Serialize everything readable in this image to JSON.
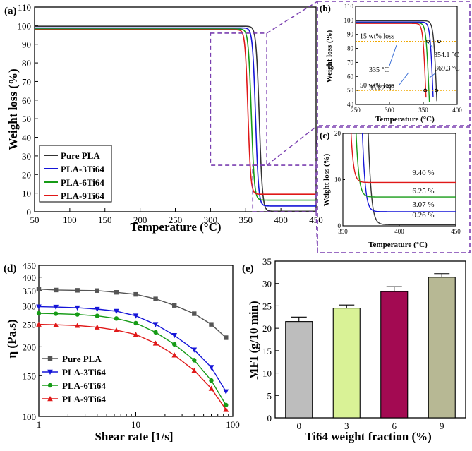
{
  "chart_data": [
    {
      "id": "a",
      "panel_label": "(a)",
      "type": "line",
      "title": "",
      "xlabel": "Temperature (°C)",
      "ylabel": "Weight loss (%)",
      "xlim": [
        50,
        450
      ],
      "ylim": [
        0,
        110
      ],
      "xticks": [
        50,
        100,
        150,
        200,
        250,
        300,
        350,
        400,
        450
      ],
      "yticks": [
        0,
        10,
        20,
        30,
        40,
        50,
        60,
        70,
        80,
        90,
        100,
        110
      ],
      "legend": {
        "placement": "bottom-left"
      },
      "series": [
        {
          "name": "Pure PLA",
          "color": "#333333",
          "plateau": 99.7,
          "residue": 0.26,
          "t_half": 369.3,
          "width": 9.5
        },
        {
          "name": "PLA-3Ti64",
          "color": "#1515d8",
          "plateau": 98.8,
          "residue": 3.07,
          "t_half": 364.0,
          "width": 9.0
        },
        {
          "name": "PLA-6Ti64",
          "color": "#169b16",
          "plateau": 98.2,
          "residue": 6.25,
          "t_half": 358.0,
          "width": 9.0
        },
        {
          "name": "PLA-9Ti64",
          "color": "#e01818",
          "plateau": 97.8,
          "residue": 9.4,
          "t_half": 353.2,
          "width": 8.5
        }
      ]
    },
    {
      "id": "b",
      "panel_label": "(b)",
      "type": "line",
      "xlabel": "Temperature (°C)",
      "ylabel": "Weight loss (%)",
      "xlim": [
        250,
        400
      ],
      "ylim": [
        40,
        110
      ],
      "xticks": [
        250,
        300,
        350,
        400
      ],
      "yticks": [
        40,
        50,
        60,
        70,
        80,
        90,
        100,
        110
      ],
      "reference_lines": [
        {
          "y": 85,
          "label": "15 wt% loss"
        },
        {
          "y": 50,
          "label": "50 wt% loss"
        }
      ],
      "annotations": [
        "335 °C",
        "354.1 °C",
        "353.2 °C",
        "369.3 °C"
      ]
    },
    {
      "id": "c",
      "panel_label": "(c)",
      "type": "line",
      "xlabel": "Temperature (°C)",
      "ylabel": "Weight loss (%)",
      "xlim": [
        350,
        450
      ],
      "ylim": [
        0,
        20
      ],
      "xticks": [
        350,
        400,
        450
      ],
      "yticks": [
        0,
        10,
        20
      ],
      "residue_labels": [
        "9.40 %",
        "6.25 %",
        "3.07 %",
        "0.26 %"
      ]
    },
    {
      "id": "d",
      "panel_label": "(d)",
      "type": "line",
      "xlabel": "Shear rate [1/s]",
      "ylabel": "η (Pa.s)",
      "xscale": "log",
      "yscale": "log",
      "xlim": [
        1,
        100
      ],
      "ylim": [
        100,
        450
      ],
      "xtick_labels": [
        "1",
        "10",
        "100"
      ],
      "ytick_values": [
        100,
        150,
        200,
        250,
        300,
        350,
        400,
        450
      ],
      "legend": {
        "placement": "bottom-left"
      },
      "x": [
        1.0,
        1.5,
        2.5,
        4.0,
        6.3,
        10.0,
        16.0,
        25.0,
        40.0,
        60.0,
        85.0
      ],
      "series": [
        {
          "name": "Pure PLA",
          "color": "#555555",
          "marker": "square",
          "values": [
            355,
            352,
            351,
            350,
            344,
            337,
            322,
            302,
            278,
            250,
            219
          ]
        },
        {
          "name": "PLA-3Ti64",
          "color": "#1515d8",
          "marker": "triangle-down",
          "values": [
            298,
            297,
            295,
            291,
            285,
            272,
            250,
            224,
            194,
            163,
            128
          ]
        },
        {
          "name": "PLA-6Ti64",
          "color": "#169b16",
          "marker": "circle",
          "values": [
            279,
            278,
            276,
            272,
            265,
            253,
            231,
            205,
            175,
            143,
            112
          ]
        },
        {
          "name": "PLA-9Ti64",
          "color": "#e01818",
          "marker": "triangle-up",
          "values": [
            250,
            249,
            247,
            243,
            236,
            226,
            207,
            184,
            158,
            132,
            107
          ]
        }
      ]
    },
    {
      "id": "e",
      "panel_label": "(e)",
      "type": "bar",
      "xlabel": "Ti64 weight fraction (%)",
      "ylabel": "MFI (g/10 min)",
      "ylim": [
        0,
        35
      ],
      "yticks": [
        0,
        5,
        10,
        15,
        20,
        25,
        30,
        35
      ],
      "categories": [
        "0",
        "3",
        "6",
        "9"
      ],
      "values": [
        21.5,
        24.5,
        28.2,
        31.4
      ],
      "errors": [
        1.0,
        0.7,
        1.1,
        0.8
      ],
      "colors": [
        "#bdbdbd",
        "#d9f296",
        "#a30a52",
        "#b7b894"
      ]
    }
  ]
}
